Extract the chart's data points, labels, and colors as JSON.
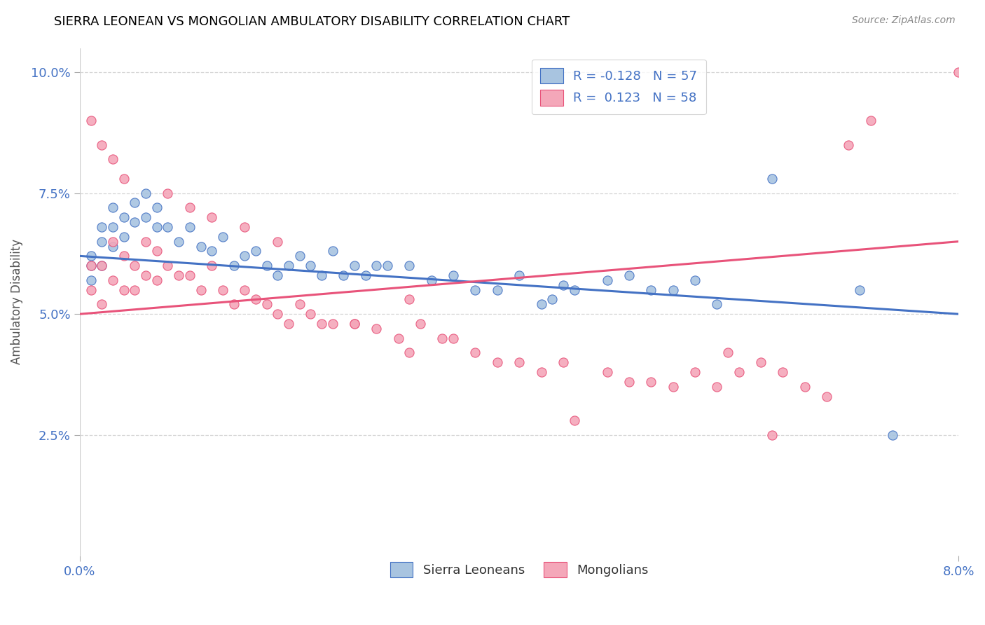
{
  "title": "SIERRA LEONEAN VS MONGOLIAN AMBULATORY DISABILITY CORRELATION CHART",
  "source": "Source: ZipAtlas.com",
  "ylabel": "Ambulatory Disability",
  "xmin": 0.0,
  "xmax": 0.08,
  "ymin": 0.0,
  "ymax": 0.105,
  "yticks": [
    0.025,
    0.05,
    0.075,
    0.1
  ],
  "ytick_labels": [
    "2.5%",
    "5.0%",
    "7.5%",
    "10.0%"
  ],
  "xticks": [
    0.0,
    0.08
  ],
  "xtick_labels": [
    "0.0%",
    "8.0%"
  ],
  "blue_color": "#a8c4e0",
  "pink_color": "#f4a7b9",
  "blue_line_color": "#4472c4",
  "pink_line_color": "#e8537a",
  "legend_blue_label": "R = -0.128   N = 57",
  "legend_pink_label": "R =  0.123   N = 58",
  "legend_sl_label": "Sierra Leoneans",
  "legend_mn_label": "Mongolians",
  "r_blue": -0.128,
  "r_pink": 0.123,
  "blue_line_y0": 0.062,
  "blue_line_y1": 0.05,
  "pink_line_y0": 0.05,
  "pink_line_y1": 0.065,
  "blue_points_x": [
    0.001,
    0.001,
    0.001,
    0.002,
    0.002,
    0.002,
    0.003,
    0.003,
    0.003,
    0.004,
    0.004,
    0.005,
    0.005,
    0.006,
    0.006,
    0.007,
    0.007,
    0.008,
    0.009,
    0.01,
    0.011,
    0.012,
    0.013,
    0.014,
    0.015,
    0.016,
    0.017,
    0.018,
    0.019,
    0.02,
    0.021,
    0.022,
    0.023,
    0.024,
    0.025,
    0.026,
    0.027,
    0.028,
    0.03,
    0.032,
    0.034,
    0.036,
    0.038,
    0.04,
    0.042,
    0.043,
    0.044,
    0.045,
    0.048,
    0.05,
    0.052,
    0.054,
    0.056,
    0.058,
    0.063,
    0.071,
    0.074
  ],
  "blue_points_y": [
    0.062,
    0.06,
    0.057,
    0.068,
    0.065,
    0.06,
    0.072,
    0.068,
    0.064,
    0.07,
    0.066,
    0.073,
    0.069,
    0.075,
    0.07,
    0.072,
    0.068,
    0.068,
    0.065,
    0.068,
    0.064,
    0.063,
    0.066,
    0.06,
    0.062,
    0.063,
    0.06,
    0.058,
    0.06,
    0.062,
    0.06,
    0.058,
    0.063,
    0.058,
    0.06,
    0.058,
    0.06,
    0.06,
    0.06,
    0.057,
    0.058,
    0.055,
    0.055,
    0.058,
    0.052,
    0.053,
    0.056,
    0.055,
    0.057,
    0.058,
    0.055,
    0.055,
    0.057,
    0.052,
    0.078,
    0.055,
    0.025
  ],
  "pink_points_x": [
    0.001,
    0.001,
    0.002,
    0.002,
    0.003,
    0.003,
    0.004,
    0.004,
    0.005,
    0.005,
    0.006,
    0.006,
    0.007,
    0.007,
    0.008,
    0.009,
    0.01,
    0.011,
    0.012,
    0.013,
    0.014,
    0.015,
    0.016,
    0.017,
    0.018,
    0.019,
    0.02,
    0.021,
    0.022,
    0.023,
    0.025,
    0.027,
    0.029,
    0.03,
    0.031,
    0.033,
    0.034,
    0.036,
    0.038,
    0.04,
    0.042,
    0.044,
    0.048,
    0.05,
    0.052,
    0.054,
    0.056,
    0.058,
    0.059,
    0.06,
    0.062,
    0.063,
    0.064,
    0.066,
    0.068,
    0.07,
    0.072,
    0.08
  ],
  "pink_points_y": [
    0.06,
    0.055,
    0.06,
    0.052,
    0.065,
    0.057,
    0.062,
    0.055,
    0.06,
    0.055,
    0.065,
    0.058,
    0.063,
    0.057,
    0.06,
    0.058,
    0.058,
    0.055,
    0.06,
    0.055,
    0.052,
    0.055,
    0.053,
    0.052,
    0.05,
    0.048,
    0.052,
    0.05,
    0.048,
    0.048,
    0.048,
    0.047,
    0.045,
    0.042,
    0.048,
    0.045,
    0.045,
    0.042,
    0.04,
    0.04,
    0.038,
    0.04,
    0.038,
    0.036,
    0.036,
    0.035,
    0.038,
    0.035,
    0.042,
    0.038,
    0.04,
    0.025,
    0.038,
    0.035,
    0.033,
    0.085,
    0.09,
    0.1
  ],
  "extra_pink_x": [
    0.001,
    0.002,
    0.003,
    0.004,
    0.008,
    0.01,
    0.012,
    0.015,
    0.018,
    0.025,
    0.03,
    0.045
  ],
  "extra_pink_y": [
    0.09,
    0.085,
    0.082,
    0.078,
    0.075,
    0.072,
    0.07,
    0.068,
    0.065,
    0.048,
    0.053,
    0.028
  ]
}
